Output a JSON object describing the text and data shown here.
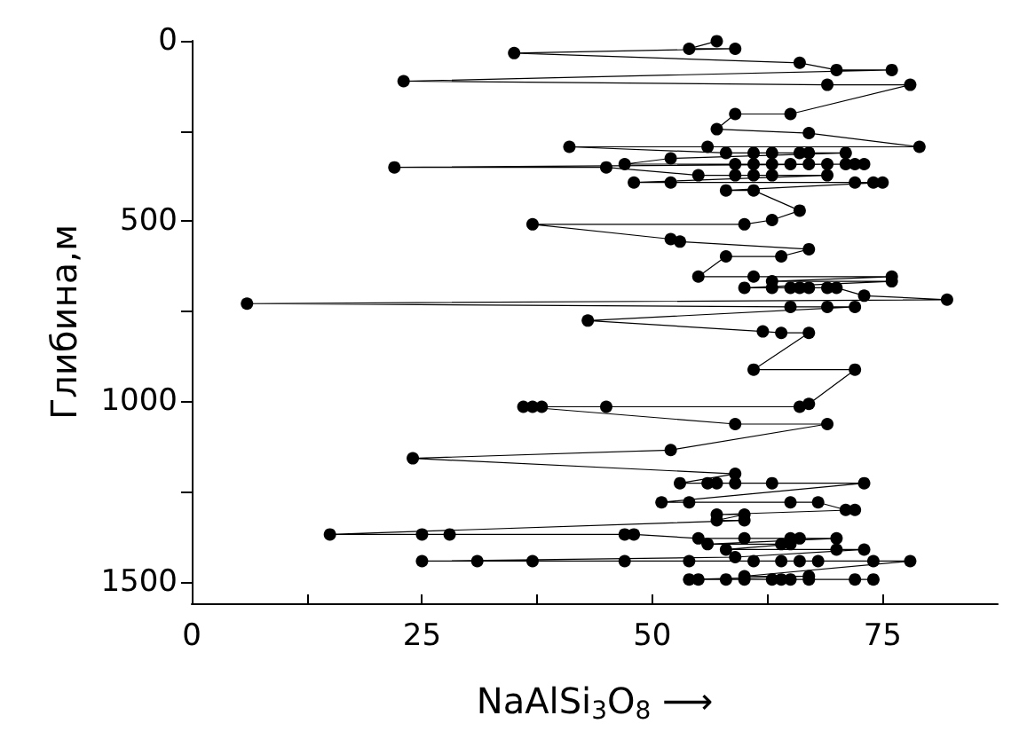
{
  "chart_data": {
    "type": "line",
    "xlabel": "NaAlSi$_{3}$O$_{8}$ ⟶",
    "ylabel": "Глибина,м",
    "marker": "circle",
    "xlim": [
      0,
      87.5
    ],
    "xticks": [
      0,
      {
        "value": 12.5,
        "label": null
      },
      25,
      {
        "value": 37.5,
        "label": null
      },
      50,
      {
        "value": 62.5,
        "label": null
      },
      75
    ],
    "ylim": [
      1560,
      0
    ],
    "yticks": [
      0,
      {
        "value": 250,
        "label": null
      },
      500,
      {
        "value": 750,
        "label": null
      },
      1000,
      {
        "value": 1250,
        "label": null
      },
      1500
    ],
    "series": [
      {
        "color": "#000000",
        "x": [
          57,
          54,
          59,
          35,
          66,
          70,
          76,
          23,
          69,
          78,
          65,
          59,
          57,
          67,
          79,
          56,
          41,
          58,
          61,
          63,
          66,
          67,
          71,
          52,
          47,
          59,
          61,
          63,
          65,
          67,
          69,
          71,
          72,
          73,
          22,
          45,
          55,
          59,
          61,
          63,
          69,
          48,
          52,
          72,
          74,
          75,
          58,
          61,
          66,
          63,
          60,
          37,
          52,
          53,
          67,
          64,
          58,
          55,
          61,
          76,
          63,
          76,
          60,
          63,
          65,
          66,
          67,
          69,
          70,
          73,
          82,
          6,
          65,
          69,
          72,
          43,
          62,
          64,
          67,
          61,
          72,
          67,
          66,
          45,
          38,
          37,
          36,
          59,
          69,
          52,
          24,
          59,
          53,
          56,
          57,
          59,
          63,
          73,
          51,
          54,
          65,
          68,
          71,
          72,
          57,
          60,
          57,
          60,
          15,
          25,
          28,
          47,
          48,
          55,
          60,
          65,
          66,
          70,
          56,
          64,
          65,
          58,
          70,
          73,
          59,
          25,
          31,
          37,
          47,
          54,
          61,
          64,
          66,
          68,
          74,
          78,
          60,
          67,
          54,
          55,
          58,
          60,
          63,
          64,
          65,
          67,
          72,
          74
        ],
        "values": [
          1,
          22,
          22,
          34,
          61,
          81,
          81,
          112,
          122,
          122,
          203,
          203,
          245,
          256,
          294,
          294,
          294,
          311,
          311,
          311,
          311,
          311,
          311,
          326,
          342,
          342,
          342,
          342,
          342,
          342,
          342,
          342,
          342,
          342,
          351,
          351,
          373,
          373,
          373,
          373,
          373,
          393,
          393,
          393,
          393,
          393,
          415,
          415,
          471,
          497,
          509,
          509,
          550,
          557,
          578,
          598,
          598,
          654,
          654,
          654,
          667,
          667,
          685,
          685,
          685,
          685,
          685,
          685,
          685,
          707,
          718,
          729,
          738,
          738,
          738,
          776,
          806,
          810,
          810,
          912,
          912,
          1007,
          1015,
          1015,
          1015,
          1015,
          1015,
          1063,
          1063,
          1135,
          1158,
          1201,
          1227,
          1227,
          1227,
          1227,
          1227,
          1227,
          1280,
          1280,
          1280,
          1280,
          1301,
          1301,
          1314,
          1314,
          1330,
          1330,
          1369,
          1369,
          1369,
          1369,
          1369,
          1380,
          1380,
          1380,
          1380,
          1380,
          1396,
          1396,
          1396,
          1411,
          1411,
          1411,
          1432,
          1443,
          1443,
          1443,
          1443,
          1443,
          1443,
          1443,
          1443,
          1443,
          1443,
          1443,
          1485,
          1485,
          1494,
          1494,
          1494,
          1494,
          1494,
          1494,
          1494,
          1494,
          1494,
          1494
        ]
      }
    ]
  }
}
